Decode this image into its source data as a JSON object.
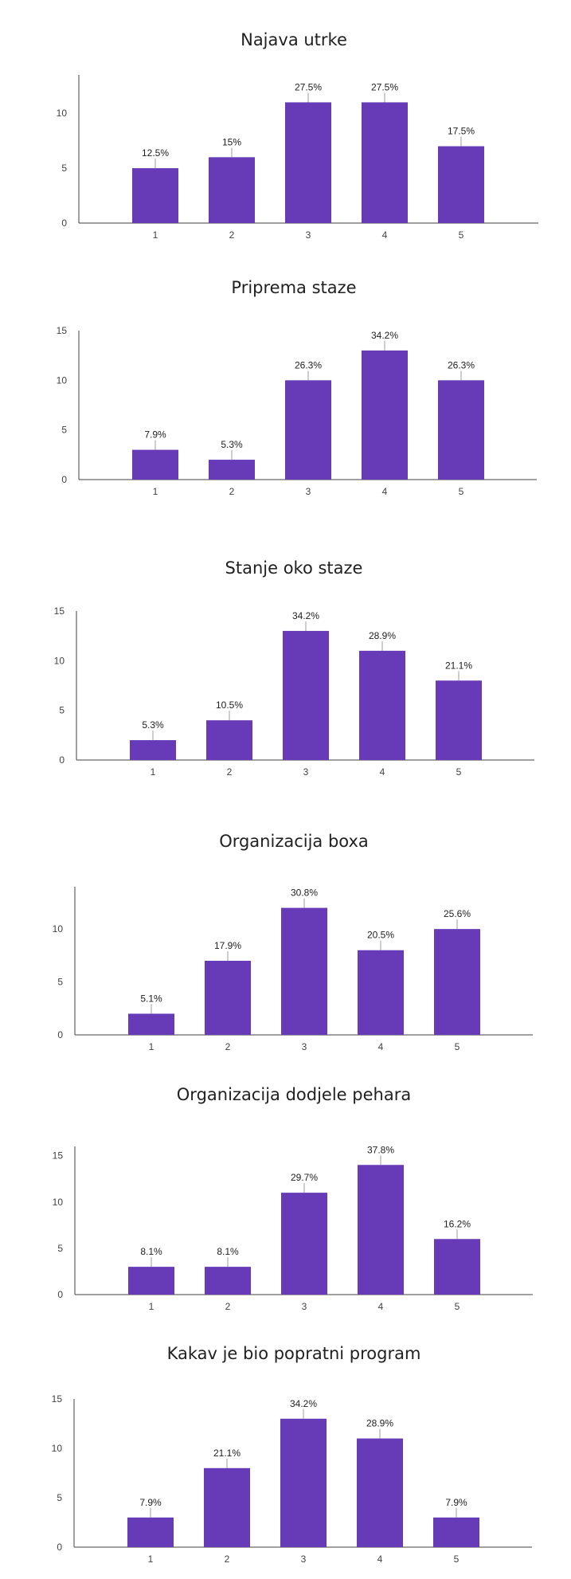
{
  "colors": {
    "bar": "#673ab7",
    "axis": "#424242",
    "leader": "#9e9e9e",
    "text": "#212121"
  },
  "chart_data": [
    {
      "type": "bar",
      "title": "Najava utrke",
      "categories": [
        "1",
        "2",
        "3",
        "4",
        "5"
      ],
      "values": [
        5,
        6,
        11,
        11,
        7
      ],
      "labels": [
        "12.5%",
        "15%",
        "27.5%",
        "27.5%",
        "17.5%"
      ],
      "yticks": [
        0,
        5,
        10
      ],
      "ylim": [
        0,
        13.5
      ],
      "grid": false,
      "legend": "none"
    },
    {
      "type": "bar",
      "title": "Priprema staze",
      "categories": [
        "1",
        "2",
        "3",
        "4",
        "5"
      ],
      "values": [
        3,
        2,
        10,
        13,
        10
      ],
      "labels": [
        "7.9%",
        "5.3%",
        "26.3%",
        "34.2%",
        "26.3%"
      ],
      "yticks": [
        0,
        5,
        10,
        15
      ],
      "ylim": [
        0,
        15
      ],
      "grid": false,
      "legend": "none"
    },
    {
      "type": "bar",
      "title": "Stanje oko staze",
      "categories": [
        "1",
        "2",
        "3",
        "4",
        "5"
      ],
      "values": [
        2,
        4,
        13,
        11,
        8
      ],
      "labels": [
        "5.3%",
        "10.5%",
        "34.2%",
        "28.9%",
        "21.1%"
      ],
      "yticks": [
        0,
        5,
        10,
        15
      ],
      "ylim": [
        0,
        15
      ],
      "grid": false,
      "legend": "none"
    },
    {
      "type": "bar",
      "title": "Organizacija boxa",
      "categories": [
        "1",
        "2",
        "3",
        "4",
        "5"
      ],
      "values": [
        2,
        7,
        12,
        8,
        10
      ],
      "labels": [
        "5.1%",
        "17.9%",
        "30.8%",
        "20.5%",
        "25.6%"
      ],
      "yticks": [
        0,
        5,
        10
      ],
      "ylim": [
        0,
        14
      ],
      "grid": false,
      "legend": "none"
    },
    {
      "type": "bar",
      "title": "Organizacija dodjele pehara",
      "categories": [
        "1",
        "2",
        "3",
        "4",
        "5"
      ],
      "values": [
        3,
        3,
        11,
        14,
        6
      ],
      "labels": [
        "8.1%",
        "8.1%",
        "29.7%",
        "37.8%",
        "16.2%"
      ],
      "yticks": [
        0,
        5,
        10,
        15
      ],
      "ylim": [
        0,
        16
      ],
      "grid": false,
      "legend": "none"
    },
    {
      "type": "bar",
      "title": "Kakav je bio popratni program",
      "categories": [
        "1",
        "2",
        "3",
        "4",
        "5"
      ],
      "values": [
        3,
        8,
        13,
        11,
        3
      ],
      "labels": [
        "7.9%",
        "21.1%",
        "34.2%",
        "28.9%",
        "7.9%"
      ],
      "yticks": [
        0,
        5,
        10,
        15
      ],
      "ylim": [
        0,
        15
      ],
      "grid": false,
      "legend": "none"
    }
  ]
}
